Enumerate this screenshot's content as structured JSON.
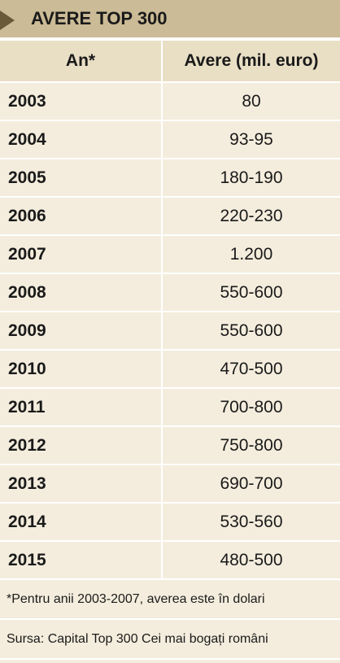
{
  "header": {
    "title": "AVERE TOP 300"
  },
  "table": {
    "columns": [
      "An*",
      "Avere (mil. euro)"
    ],
    "rows": [
      [
        "2003",
        "80"
      ],
      [
        "2004",
        "93-95"
      ],
      [
        "2005",
        "180-190"
      ],
      [
        "2006",
        "220-230"
      ],
      [
        "2007",
        "1.200"
      ],
      [
        "2008",
        "550-600"
      ],
      [
        "2009",
        "550-600"
      ],
      [
        "2010",
        "470-500"
      ],
      [
        "2011",
        "700-800"
      ],
      [
        "2012",
        "750-800"
      ],
      [
        "2013",
        "690-700"
      ],
      [
        "2014",
        "530-560"
      ],
      [
        "2015",
        "480-500"
      ]
    ]
  },
  "footnote": "*Pentru anii 2003-2007, averea este în dolari",
  "source": "Sursa: Capital Top 300 Cei mai bogați români"
}
